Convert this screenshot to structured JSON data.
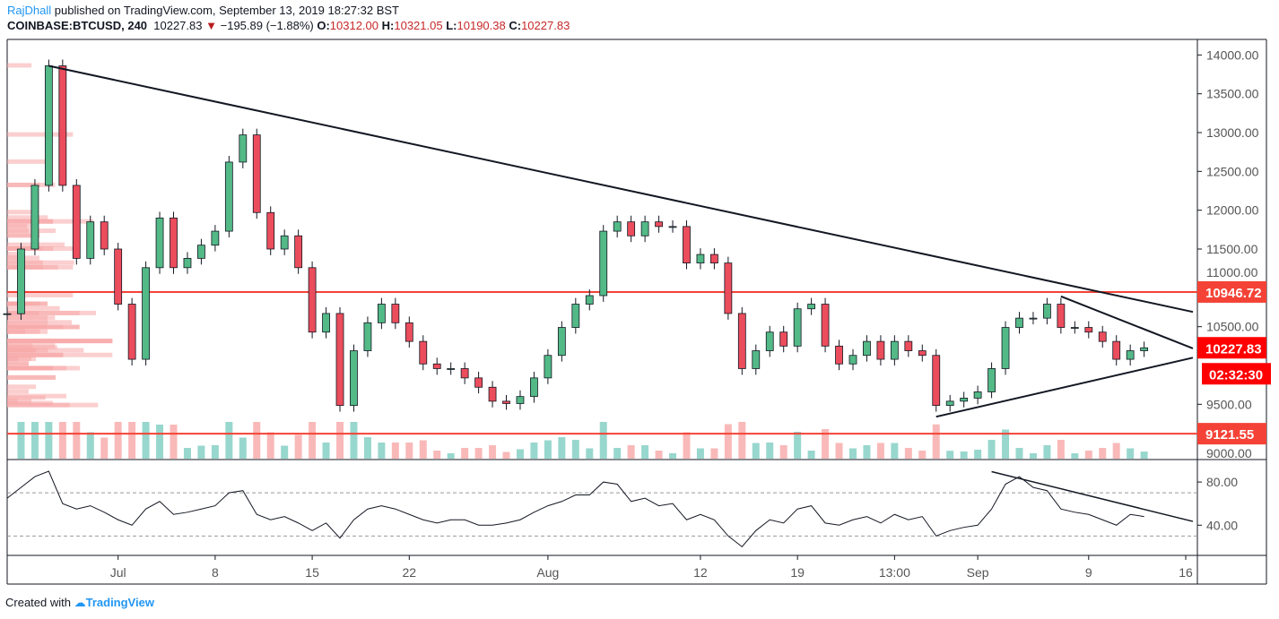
{
  "header": {
    "author": "RajDhall",
    "published": "published on TradingView.com, September 13, 2019 18:27:32 BST",
    "symbol": "COINBASE:BTCUSD, 240",
    "last": "10227.83",
    "change": "−195.89 (−1.88%)",
    "o_label": "O:",
    "o": "10312.00",
    "h_label": "H:",
    "h": "10321.05",
    "l_label": "L:",
    "l": "10190.38",
    "c_label": "C:",
    "c": "10227.83"
  },
  "footer": {
    "created": "Created with",
    "brand": "TradingView"
  },
  "colors": {
    "up": "#53b987",
    "down": "#eb4d5c",
    "hline": "#f44336",
    "label_red": "#ff0000",
    "volume_up": "#7ecdc2",
    "volume_down": "#f7a7a7"
  },
  "chart_data": {
    "type": "candlestick",
    "price_axis": {
      "range": [
        8800,
        14200
      ],
      "ticks": [
        "14000.00",
        "13500.00",
        "13000.00",
        "12500.00",
        "12000.00",
        "11500.00",
        "11000.00",
        "10500.00",
        "9500.00",
        "9000.00"
      ],
      "tick_values": [
        14000,
        13500,
        13000,
        12500,
        12000,
        11500,
        11000,
        10500,
        9500,
        9000
      ]
    },
    "x_axis": {
      "ticks": [
        {
          "label": "Jul",
          "date": "2019-07-01"
        },
        {
          "label": "8",
          "date": "2019-07-08"
        },
        {
          "label": "15",
          "date": "2019-07-15"
        },
        {
          "label": "22",
          "date": "2019-07-22"
        },
        {
          "label": "Aug",
          "date": "2019-08-01"
        },
        {
          "label": "12",
          "date": "2019-08-12"
        },
        {
          "label": "19",
          "date": "2019-08-19"
        },
        {
          "label": "13:00",
          "date": "2019-08-26"
        },
        {
          "label": "Sep",
          "date": "2019-09-01"
        },
        {
          "label": "9",
          "date": "2019-09-09"
        },
        {
          "label": "16",
          "date": "2019-09-16"
        }
      ],
      "range": [
        "2019-06-23",
        "2019-09-16"
      ]
    },
    "price_labels": [
      {
        "text": "10946.72",
        "value": 10946.72,
        "type": "hline"
      },
      {
        "text": "10227.83",
        "value": 10227.83,
        "type": "last"
      },
      {
        "text": "02:32:30",
        "type": "countdown"
      },
      {
        "text": "9121.55",
        "value": 9121.55,
        "type": "hline"
      }
    ],
    "closes": {
      "start": "2019-06-23",
      "values": [
        10667,
        11500,
        12320,
        13860,
        12320,
        11380,
        11850,
        11500,
        10790,
        10080,
        11260,
        11900,
        11260,
        11380,
        11550,
        11730,
        12620,
        12970,
        11970,
        11500,
        11670,
        11260,
        10430,
        10670,
        9485,
        10190,
        10550,
        10790,
        10550,
        10310,
        10020,
        9960,
        9960,
        9840,
        9720,
        9540,
        9510,
        9600,
        9840,
        10130,
        10490,
        10790,
        10900,
        11730,
        11850,
        11670,
        11850,
        11790,
        11790,
        11320,
        11430,
        11320,
        10670,
        9960,
        10190,
        10430,
        10250,
        10730,
        10790,
        10250,
        10020,
        10130,
        10310,
        10080,
        10310,
        10190,
        10130,
        9485,
        9540,
        9580,
        9660,
        9960,
        10490,
        10610,
        10610,
        10790,
        10490,
        10490,
        10430,
        10310,
        10080,
        10190,
        10228
      ]
    },
    "trendlines": [
      {
        "from": [
          "2019-06-26",
          13860
        ],
        "to": [
          "2019-09-16",
          10690
        ]
      },
      {
        "from": [
          "2019-09-07",
          10890
        ],
        "to": [
          "2019-09-16",
          10220
        ]
      },
      {
        "from": [
          "2019-08-29",
          9340
        ],
        "to": [
          "2019-09-16",
          10100
        ]
      }
    ],
    "hlines": [
      10946.72,
      9121.55
    ],
    "rsi": {
      "ticks": [
        "80.00",
        "40.00"
      ],
      "tick_values": [
        80,
        40
      ],
      "bands": [
        70,
        30
      ],
      "range": [
        12,
        100
      ],
      "values": [
        65,
        75,
        85,
        90,
        60,
        55,
        58,
        52,
        45,
        40,
        55,
        62,
        50,
        52,
        55,
        58,
        70,
        72,
        50,
        45,
        48,
        42,
        35,
        42,
        28,
        45,
        55,
        58,
        55,
        50,
        45,
        42,
        45,
        45,
        40,
        40,
        42,
        45,
        52,
        58,
        62,
        68,
        68,
        80,
        78,
        62,
        65,
        58,
        60,
        45,
        50,
        45,
        30,
        20,
        35,
        45,
        42,
        55,
        58,
        42,
        40,
        45,
        48,
        42,
        50,
        45,
        48,
        30,
        35,
        38,
        40,
        55,
        78,
        85,
        75,
        72,
        55,
        52,
        50,
        45,
        40,
        50,
        48
      ],
      "trendline": {
        "from": [
          "2019-09-02",
          89.6
        ],
        "to": [
          "2019-09-16",
          43.5
        ]
      }
    }
  }
}
